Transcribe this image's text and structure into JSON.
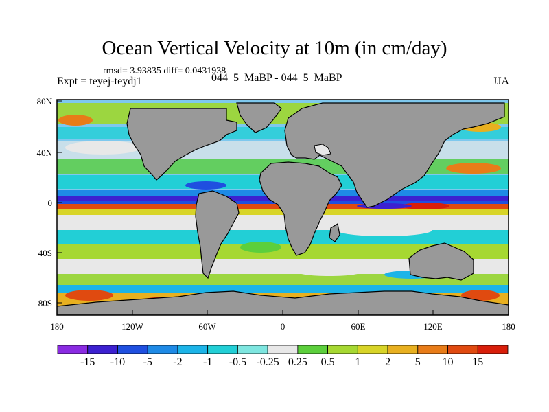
{
  "title": "Ocean Vertical Velocity at 10m (in cm/day)",
  "stats": "rmsd= 3.93835 diff= 0.0431938",
  "experiment": "Expt = teyej-teydj1",
  "comparison": "044_5_MaBP - 044_5_MaBP",
  "season": "JJA",
  "lon_labels": [
    "180",
    "120W",
    "60W",
    "0",
    "60E",
    "120E",
    "180"
  ],
  "lat_labels": [
    "80N",
    "40N",
    "0",
    "40S",
    "80S"
  ],
  "colorbar": {
    "labels": [
      "-15",
      "-10",
      "-5",
      "-2",
      "-1",
      "-0.5",
      "-0.25",
      "0.25",
      "0.5",
      "1",
      "2",
      "5",
      "10",
      "15"
    ],
    "colors": [
      "#8a2be2",
      "#3c20d0",
      "#1f4fe0",
      "#1e8ae6",
      "#1cb4e8",
      "#22cfd6",
      "#7ee6e0",
      "#e8e8e8",
      "#5ccf3c",
      "#a6d832",
      "#d8d428",
      "#e8b020",
      "#e87c18",
      "#e04a10",
      "#d81e0a"
    ]
  },
  "land_color": "#999999"
}
